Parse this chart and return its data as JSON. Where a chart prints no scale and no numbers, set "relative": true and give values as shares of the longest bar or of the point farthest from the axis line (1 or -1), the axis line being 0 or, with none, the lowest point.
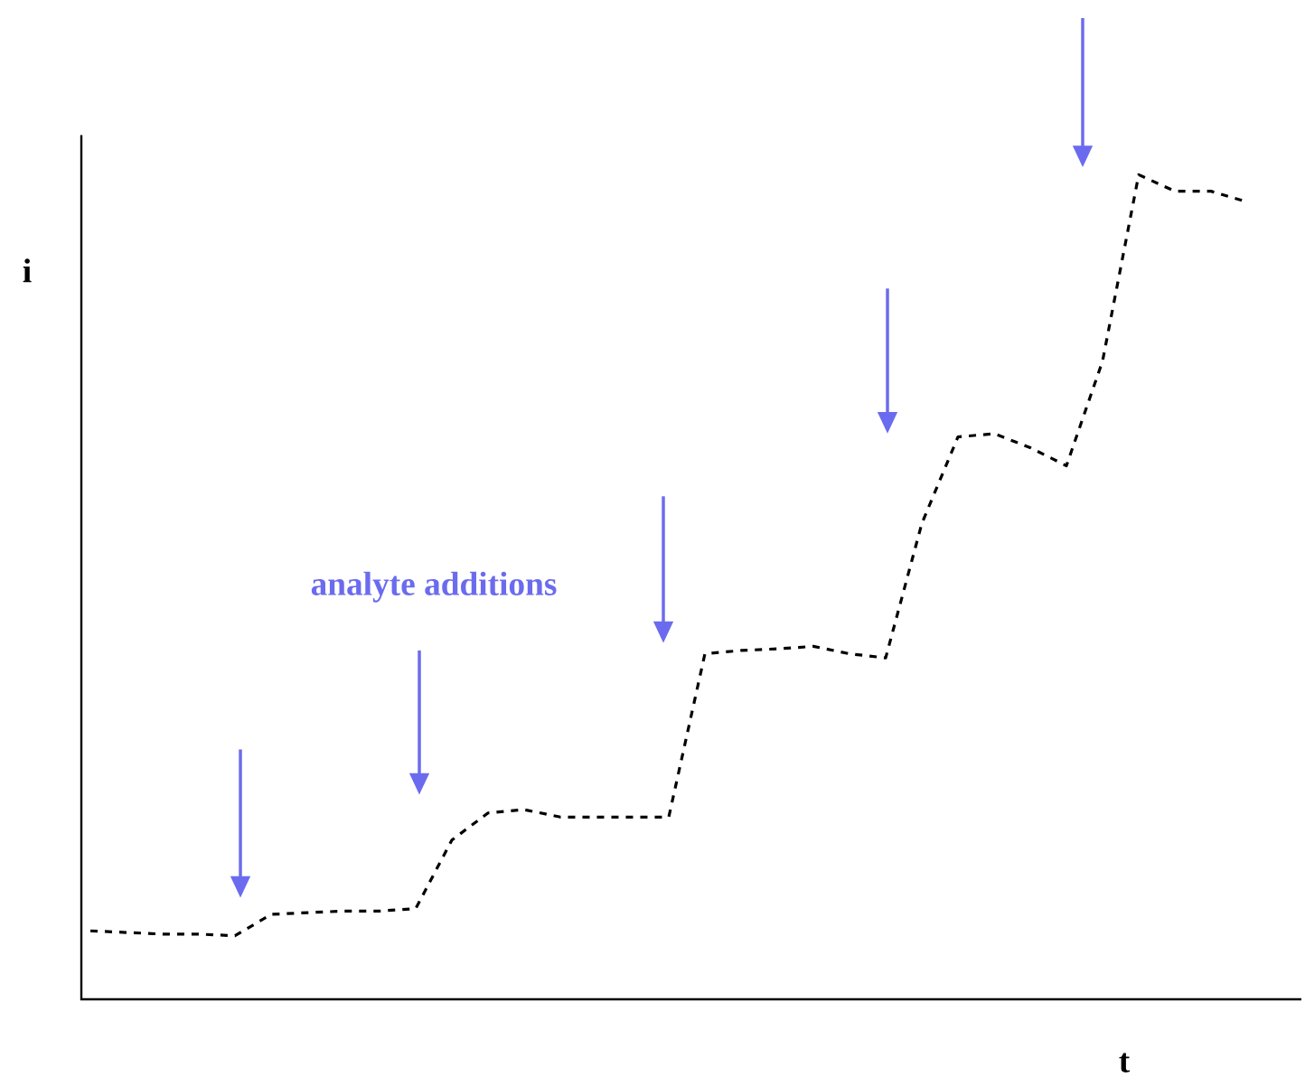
{
  "chart_data": {
    "type": "line",
    "xlabel": "t",
    "ylabel": "i",
    "annotations": [
      "analyte additions"
    ],
    "relative": true,
    "color": "#000000",
    "line_style": "dashed",
    "marker": "none",
    "categories": [
      null,
      null,
      null,
      null,
      null,
      null,
      null,
      null,
      null,
      null,
      null,
      null,
      null,
      null,
      null,
      null,
      null,
      null,
      null,
      null,
      null,
      null,
      null,
      null,
      null,
      null,
      null,
      null,
      null,
      null,
      null,
      null,
      null
    ],
    "values": [
      0.083,
      0.081,
      0.079,
      0.079,
      0.077,
      0.103,
      0.105,
      0.107,
      0.107,
      0.11,
      0.193,
      0.226,
      0.23,
      0.221,
      0.221,
      0.221,
      0.221,
      0.419,
      0.423,
      0.425,
      0.428,
      0.419,
      0.414,
      0.577,
      0.682,
      0.686,
      0.669,
      0.647,
      0.774,
      1.0,
      0.98,
      0.98,
      0.967
    ]
  }
}
